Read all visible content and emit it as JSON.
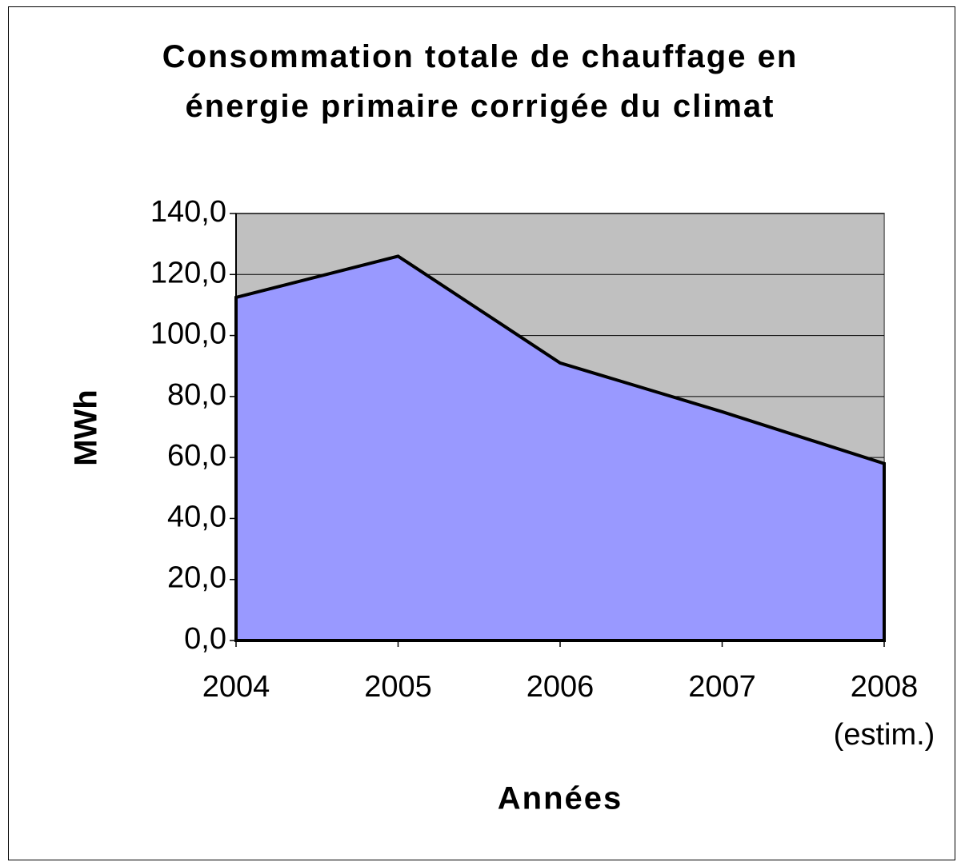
{
  "chart_data": {
    "type": "area",
    "title": "Consommation totale de chauffage en énergie primaire corrigée du climat",
    "x_label": "Années",
    "y_label": "MWh",
    "categories": [
      "2004",
      "2005",
      "2006",
      "2007",
      "2008\n(estim.)"
    ],
    "series": [
      {
        "name": "MWh",
        "color": "#9999ff",
        "values": [
          112.5,
          126,
          91,
          75,
          58
        ]
      }
    ],
    "ylim": [
      0,
      140
    ],
    "yticks": [
      {
        "value": 0,
        "label": "0,0"
      },
      {
        "value": 20,
        "label": "20,0"
      },
      {
        "value": 40,
        "label": "40,0"
      },
      {
        "value": 60,
        "label": "60,0"
      },
      {
        "value": 80,
        "label": "80,0"
      },
      {
        "value": 100,
        "label": "100,0"
      },
      {
        "value": 120,
        "label": "120,0"
      },
      {
        "value": 140,
        "label": "140,0"
      }
    ],
    "grid": true
  }
}
